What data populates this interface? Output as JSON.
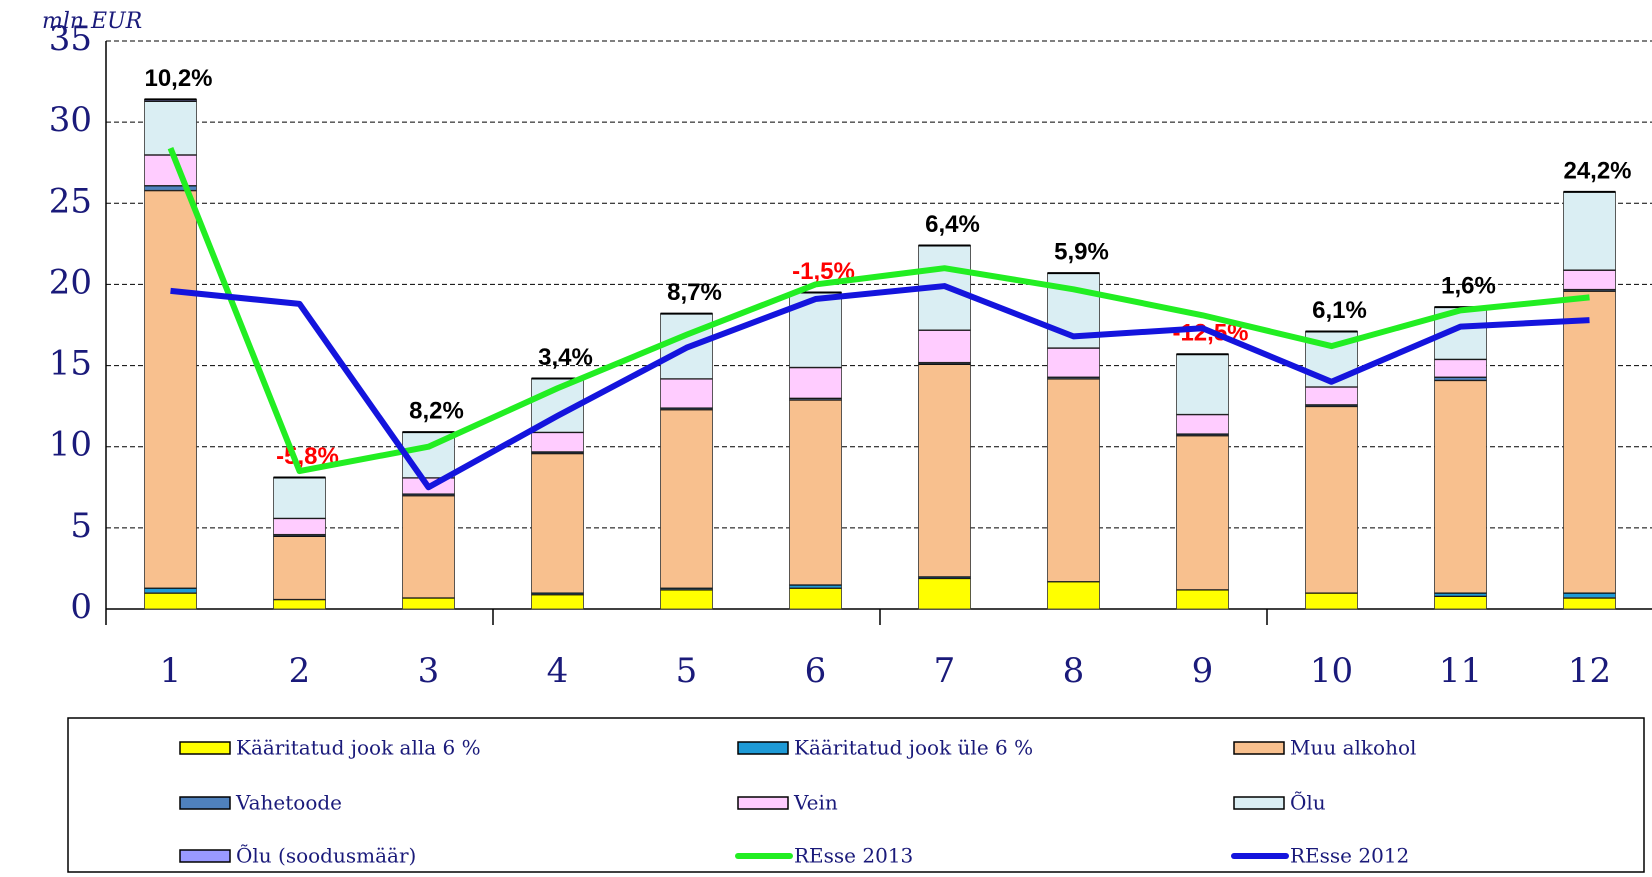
{
  "chart_data": {
    "type": "bar",
    "stacked": true,
    "y_label": "mln EUR",
    "categories": [
      "1",
      "2",
      "3",
      "4",
      "5",
      "6",
      "7",
      "8",
      "9",
      "10",
      "11",
      "12"
    ],
    "ylim": [
      0,
      35
    ],
    "yticks": [
      0,
      5,
      10,
      15,
      20,
      25,
      30,
      35
    ],
    "grid": true,
    "series": [
      {
        "name": "Kääritatud jook alla 6 %",
        "color": "#ffff00",
        "values": [
          1.0,
          0.6,
          0.7,
          0.9,
          1.2,
          1.3,
          1.9,
          1.7,
          1.2,
          1.0,
          0.8,
          0.7
        ]
      },
      {
        "name": "Kääritatud jook üle 6 %",
        "color": "#1e9ad6",
        "values": [
          0.3,
          0,
          0,
          0.1,
          0.1,
          0.2,
          0.1,
          0,
          0,
          0,
          0.2,
          0.3
        ]
      },
      {
        "name": "Muu alkohol",
        "color": "#f8c08e",
        "values": [
          24.5,
          3.9,
          6.3,
          8.6,
          11.0,
          11.4,
          13.1,
          12.5,
          9.5,
          11.5,
          13.1,
          18.6
        ]
      },
      {
        "name": "Vahetoode",
        "color": "#4f81bd",
        "values": [
          0.3,
          0.1,
          0.1,
          0.1,
          0.1,
          0.1,
          0.1,
          0.1,
          0.1,
          0.1,
          0.2,
          0.1
        ]
      },
      {
        "name": "Vein",
        "color": "#ffccff",
        "values": [
          1.9,
          1.0,
          1.0,
          1.2,
          1.8,
          1.9,
          2.0,
          1.8,
          1.2,
          1.1,
          1.1,
          1.2
        ]
      },
      {
        "name": "Õlu",
        "color": "#daeef3",
        "values": [
          3.3,
          2.5,
          2.8,
          3.3,
          4.0,
          4.6,
          5.2,
          4.6,
          3.7,
          3.4,
          3.2,
          4.8
        ]
      },
      {
        "name": "Õlu (soodusmäär)",
        "color": "#9999ff",
        "values": [
          0.1,
          0,
          0,
          0,
          0,
          0,
          0,
          0,
          0,
          0,
          0,
          0
        ]
      },
      {
        "name": "REsse 2013",
        "type": "line",
        "color": "#22ee22",
        "values": [
          28.4,
          8.5,
          10.0,
          13.6,
          16.9,
          20.0,
          21.0,
          19.7,
          18.1,
          16.2,
          18.4,
          19.2
        ]
      },
      {
        "name": "REsse 2012",
        "type": "line",
        "color": "#1414dd",
        "values": [
          19.6,
          18.8,
          7.5,
          11.9,
          16.1,
          19.1,
          19.9,
          16.8,
          17.3,
          14.0,
          17.4,
          17.8
        ]
      }
    ],
    "annotations": [
      {
        "text": "10,2%",
        "color": "#000000"
      },
      {
        "text": "-5,8%",
        "color": "#ff0000"
      },
      {
        "text": "8,2%",
        "color": "#000000"
      },
      {
        "text": "3,4%",
        "color": "#000000"
      },
      {
        "text": "8,7%",
        "color": "#000000"
      },
      {
        "text": "-1,5%",
        "color": "#ff0000"
      },
      {
        "text": "6,4%",
        "color": "#000000"
      },
      {
        "text": "5,9%",
        "color": "#000000"
      },
      {
        "text": "-12,5%",
        "color": "#ff0000"
      },
      {
        "text": "6,1%",
        "color": "#000000"
      },
      {
        "text": "1,6%",
        "color": "#000000"
      },
      {
        "text": "24,2%",
        "color": "#000000"
      }
    ]
  }
}
